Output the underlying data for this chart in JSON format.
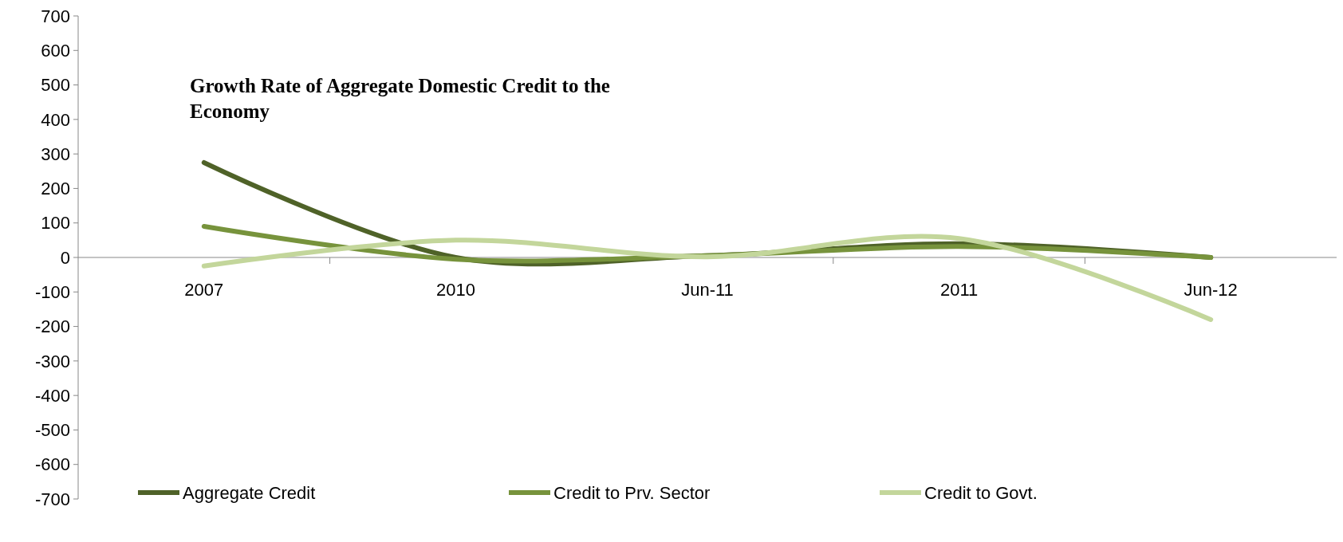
{
  "chart_data": {
    "type": "line",
    "title": "Growth Rate of Aggregate Domestic Credit to the Economy",
    "categories": [
      "2007",
      "2010",
      "Jun-11",
      "2011",
      "Jun-12"
    ],
    "series": [
      {
        "name": "Aggregate Credit",
        "color": "#4f6228",
        "values": [
          275,
          0,
          5,
          40,
          0
        ]
      },
      {
        "name": "Credit to Prv. Sector",
        "color": "#77933c",
        "values": [
          90,
          -5,
          5,
          32,
          0
        ]
      },
      {
        "name": "Credit to Govt.",
        "color": "#c3d69b",
        "values": [
          -25,
          50,
          2,
          55,
          -180
        ]
      }
    ],
    "ylim": [
      -700,
      700
    ],
    "yticks": [
      -700,
      -600,
      -500,
      -400,
      -300,
      -200,
      -100,
      0,
      100,
      200,
      300,
      400,
      500,
      600,
      700
    ],
    "grid": false,
    "legend": "bottom",
    "marker": "none",
    "line_style": "solid"
  }
}
